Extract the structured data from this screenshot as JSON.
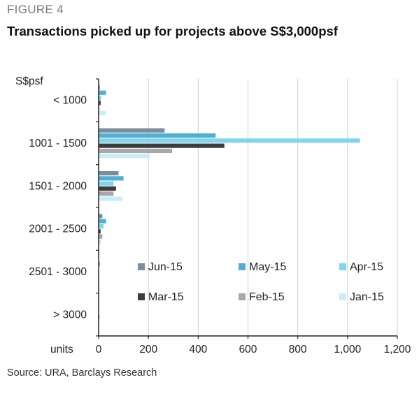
{
  "figure_label": "FIGURE 4",
  "source": "Source: URA, Barclays Research",
  "chart_data": {
    "type": "bar",
    "orientation": "horizontal",
    "title": "Transactions picked up for projects above S$3,000psf",
    "ylabel": "S$psf",
    "xlabel": "units",
    "categories": [
      "< 1000",
      "1001 - 1500",
      "1501 - 2000",
      "2001 - 2500",
      "2501 - 3000",
      "> 3000"
    ],
    "xlim": [
      0,
      1200
    ],
    "x_ticks": [
      "0",
      "200",
      "400",
      "600",
      "800",
      "1,000",
      "1,200"
    ],
    "grid": true,
    "legend_placement": "center-right",
    "series": [
      {
        "name": "Jun-15",
        "color": "#7a8e9e",
        "values": [
          5,
          265,
          80,
          15,
          0,
          0
        ]
      },
      {
        "name": "May-15",
        "color": "#4fb0d0",
        "values": [
          30,
          470,
          100,
          30,
          5,
          0
        ]
      },
      {
        "name": "Apr-15",
        "color": "#7fd4f0",
        "values": [
          10,
          1050,
          60,
          20,
          0,
          0
        ]
      },
      {
        "name": "Mar-15",
        "color": "#3d3d3d",
        "values": [
          8,
          505,
          70,
          8,
          0,
          3
        ]
      },
      {
        "name": "Feb-15",
        "color": "#a8a8a8",
        "values": [
          3,
          295,
          60,
          15,
          0,
          0
        ]
      },
      {
        "name": "Jan-15",
        "color": "#c9ecfa",
        "values": [
          30,
          205,
          95,
          10,
          0,
          0
        ]
      }
    ]
  }
}
